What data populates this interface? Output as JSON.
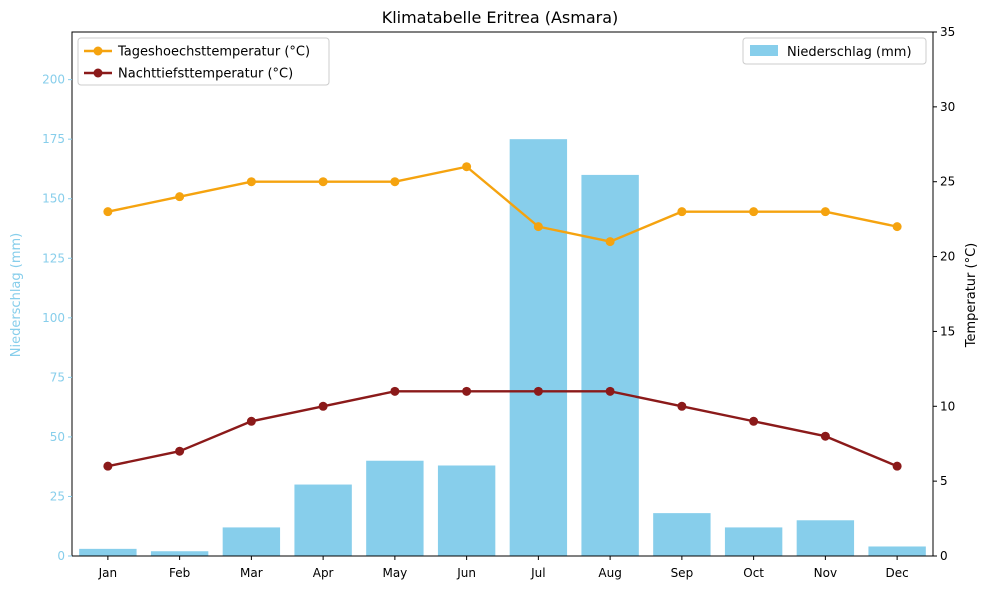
{
  "chart_data": {
    "type": "bar+line",
    "title": "Klimatabelle Eritrea (Asmara)",
    "categories": [
      "Jan",
      "Feb",
      "Mar",
      "Apr",
      "May",
      "Jun",
      "Jul",
      "Aug",
      "Sep",
      "Oct",
      "Nov",
      "Dec"
    ],
    "bar_series": {
      "name": "Niederschlag (mm)",
      "color": "#87ceeb",
      "axis": "left",
      "values": [
        3,
        2,
        12,
        30,
        40,
        38,
        175,
        160,
        18,
        12,
        15,
        4
      ]
    },
    "line_series": [
      {
        "name": "Tageshoechsttemperatur (°C)",
        "color": "#f5a30f",
        "axis": "right",
        "values": [
          23,
          24,
          25,
          25,
          25,
          26,
          22,
          21,
          23,
          23,
          23,
          22
        ]
      },
      {
        "name": "Nachttiefsttemperatur (°C)",
        "color": "#8b1a1a",
        "axis": "right",
        "values": [
          6,
          7,
          9,
          10,
          11,
          11,
          11,
          11,
          10,
          9,
          8,
          6
        ]
      }
    ],
    "left_axis": {
      "label": "Niederschlag (mm)",
      "color": "#87ceeb",
      "ylim": [
        0,
        220
      ],
      "ticks": [
        0,
        25,
        50,
        75,
        100,
        125,
        150,
        175,
        200
      ]
    },
    "right_axis": {
      "label": "Temperatur (°C)",
      "color": "#000000",
      "ylim": [
        0,
        35
      ],
      "ticks": [
        0,
        5,
        10,
        15,
        20,
        25,
        30,
        35
      ]
    },
    "grid": false,
    "legend_lines": "top-left",
    "legend_bars": "top-right"
  }
}
